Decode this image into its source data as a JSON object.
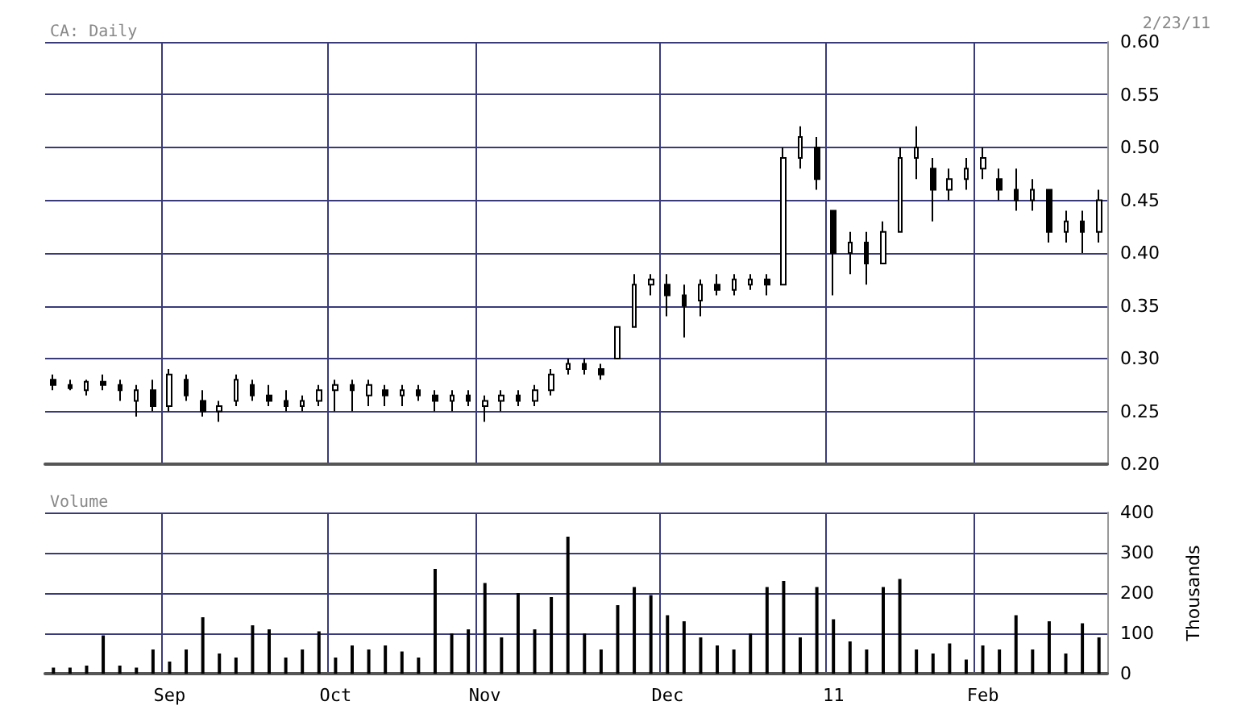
{
  "chart_data": [
    {
      "type": "candlestick",
      "title": "CA: Daily",
      "annotations": [
        "2/23/11"
      ],
      "color": "#000000",
      "grid": true,
      "tick_labels": "y",
      "ylim": [
        0.2,
        0.6
      ],
      "yticks": [
        {
          "value": 0.2,
          "label": "0.20"
        },
        0.25,
        {
          "value": 0.3,
          "label": "0.30"
        },
        0.35,
        {
          "value": 0.4,
          "label": "0.40"
        },
        0.45,
        {
          "value": 0.5,
          "label": "0.50"
        },
        0.55,
        {
          "value": 0.6,
          "label": "0.60"
        }
      ],
      "categories": [
        null,
        null,
        null,
        null,
        null,
        null,
        null,
        null,
        null,
        null,
        null,
        null,
        null,
        null,
        null,
        null,
        null,
        null,
        null,
        null,
        null,
        null,
        null,
        null,
        null,
        null,
        null,
        null,
        null,
        null,
        null,
        null,
        null,
        null,
        null,
        null,
        null,
        null,
        null,
        null,
        null,
        null,
        null,
        null,
        null,
        null,
        null,
        null,
        null,
        null,
        null,
        null,
        null,
        null,
        null,
        null,
        null,
        null,
        null,
        null,
        null,
        null,
        null,
        null
      ],
      "ohlc": [
        [
          0.28,
          0.285,
          0.27,
          0.275
        ],
        [
          0.275,
          0.28,
          0.27,
          0.272
        ],
        [
          0.27,
          0.28,
          0.265,
          0.278
        ],
        [
          0.278,
          0.285,
          0.27,
          0.275
        ],
        [
          0.275,
          0.28,
          0.26,
          0.27
        ],
        [
          0.26,
          0.275,
          0.245,
          0.27
        ],
        [
          0.27,
          0.28,
          0.25,
          0.255
        ],
        [
          0.255,
          0.29,
          0.25,
          0.285
        ],
        [
          0.28,
          0.285,
          0.26,
          0.265
        ],
        [
          0.26,
          0.27,
          0.245,
          0.25
        ],
        [
          0.25,
          0.26,
          0.24,
          0.255
        ],
        [
          0.26,
          0.285,
          0.255,
          0.28
        ],
        [
          0.275,
          0.28,
          0.26,
          0.265
        ],
        [
          0.265,
          0.275,
          0.255,
          0.26
        ],
        [
          0.26,
          0.27,
          0.25,
          0.255
        ],
        [
          0.255,
          0.265,
          0.25,
          0.26
        ],
        [
          0.26,
          0.275,
          0.255,
          0.27
        ],
        [
          0.27,
          0.28,
          0.25,
          0.275
        ],
        [
          0.275,
          0.28,
          0.25,
          0.27
        ],
        [
          0.265,
          0.28,
          0.255,
          0.275
        ],
        [
          0.27,
          0.275,
          0.255,
          0.265
        ],
        [
          0.265,
          0.275,
          0.255,
          0.27
        ],
        [
          0.27,
          0.275,
          0.26,
          0.265
        ],
        [
          0.265,
          0.27,
          0.25,
          0.26
        ],
        [
          0.26,
          0.27,
          0.25,
          0.265
        ],
        [
          0.265,
          0.27,
          0.255,
          0.26
        ],
        [
          0.255,
          0.265,
          0.24,
          0.26
        ],
        [
          0.26,
          0.27,
          0.25,
          0.265
        ],
        [
          0.265,
          0.27,
          0.255,
          0.26
        ],
        [
          0.26,
          0.275,
          0.255,
          0.27
        ],
        [
          0.27,
          0.29,
          0.265,
          0.285
        ],
        [
          0.29,
          0.3,
          0.285,
          0.295
        ],
        [
          0.295,
          0.3,
          0.285,
          0.29
        ],
        [
          0.29,
          0.295,
          0.28,
          0.285
        ],
        [
          0.3,
          0.33,
          0.3,
          0.33
        ],
        [
          0.33,
          0.38,
          0.33,
          0.37
        ],
        [
          0.37,
          0.38,
          0.36,
          0.375
        ],
        [
          0.37,
          0.38,
          0.34,
          0.36
        ],
        [
          0.36,
          0.37,
          0.32,
          0.35
        ],
        [
          0.355,
          0.375,
          0.34,
          0.37
        ],
        [
          0.37,
          0.38,
          0.36,
          0.365
        ],
        [
          0.365,
          0.38,
          0.36,
          0.375
        ],
        [
          0.37,
          0.38,
          0.365,
          0.375
        ],
        [
          0.375,
          0.38,
          0.36,
          0.37
        ],
        [
          0.37,
          0.5,
          0.37,
          0.49
        ],
        [
          0.49,
          0.52,
          0.48,
          0.51
        ],
        [
          0.5,
          0.51,
          0.46,
          0.47
        ],
        [
          0.44,
          0.44,
          0.36,
          0.4
        ],
        [
          0.4,
          0.42,
          0.38,
          0.41
        ],
        [
          0.41,
          0.42,
          0.37,
          0.39
        ],
        [
          0.39,
          0.43,
          0.39,
          0.42
        ],
        [
          0.42,
          0.5,
          0.42,
          0.49
        ],
        [
          0.49,
          0.52,
          0.47,
          0.5
        ],
        [
          0.48,
          0.49,
          0.43,
          0.46
        ],
        [
          0.46,
          0.48,
          0.45,
          0.47
        ],
        [
          0.47,
          0.49,
          0.46,
          0.48
        ],
        [
          0.48,
          0.5,
          0.47,
          0.49
        ],
        [
          0.47,
          0.48,
          0.45,
          0.46
        ],
        [
          0.46,
          0.48,
          0.44,
          0.45
        ],
        [
          0.45,
          0.47,
          0.44,
          0.46
        ],
        [
          0.46,
          0.46,
          0.41,
          0.42
        ],
        [
          0.42,
          0.44,
          0.41,
          0.43
        ],
        [
          0.43,
          0.44,
          0.4,
          0.42
        ],
        [
          0.42,
          0.46,
          0.41,
          0.45
        ]
      ]
    },
    {
      "type": "bar",
      "title": "Volume",
      "ylabel": "Thousands",
      "color": "#000000",
      "grid": true,
      "ylim": [
        0,
        400
      ],
      "yticks": [
        0,
        100,
        200,
        300,
        400
      ],
      "categories": [
        null,
        null,
        null,
        null,
        null,
        null,
        null,
        "Sep",
        null,
        null,
        null,
        null,
        null,
        null,
        null,
        null,
        null,
        "Oct",
        null,
        null,
        null,
        null,
        null,
        null,
        null,
        null,
        "Nov",
        null,
        null,
        null,
        null,
        null,
        null,
        null,
        null,
        null,
        null,
        "Dec",
        null,
        null,
        null,
        null,
        null,
        null,
        null,
        null,
        null,
        "11",
        null,
        null,
        null,
        null,
        null,
        null,
        null,
        null,
        "Feb",
        null,
        null,
        null,
        null,
        null,
        null,
        null
      ],
      "values": [
        15,
        15,
        20,
        95,
        20,
        15,
        60,
        30,
        60,
        140,
        50,
        40,
        120,
        110,
        40,
        60,
        105,
        40,
        70,
        60,
        70,
        55,
        40,
        260,
        100,
        110,
        225,
        90,
        200,
        110,
        190,
        340,
        100,
        60,
        170,
        215,
        195,
        145,
        130,
        90,
        70,
        60,
        100,
        215,
        230,
        90,
        215,
        135,
        80,
        60,
        215,
        235,
        60,
        50,
        75,
        35,
        70,
        60,
        145,
        60,
        130,
        50,
        125,
        90
      ]
    }
  ]
}
